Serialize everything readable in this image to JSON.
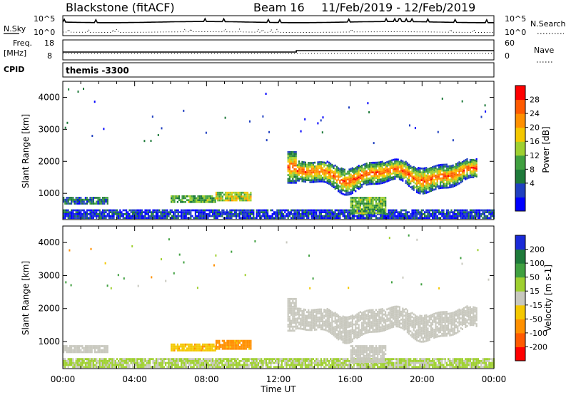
{
  "header": {
    "station": "Blackstone (fitACF)",
    "beam": "Beam 16",
    "date_range": "11/Feb/2019 - 12/Feb/2019"
  },
  "cpid": {
    "label": "CPID",
    "value": "themis -3300"
  },
  "summary": {
    "nsky_label": "N.Sky",
    "nsky_ticks": [
      "10^5",
      "10^0"
    ],
    "nsearch_label": "N.Search",
    "nsearch_ticks": [
      "10^5",
      "10^0"
    ],
    "freq_label_1": "Freq.",
    "freq_label_2": "[MHz]",
    "freq_ticks": [
      "18",
      "8"
    ],
    "nave_label": "Nave",
    "nave_ticks": [
      "60",
      "0"
    ]
  },
  "chart_data": [
    {
      "type": "heatmap",
      "name": "power",
      "xlabel": "Time UT",
      "ylabel": "Slant Range [km]",
      "xlim": [
        "00:00",
        "24:00"
      ],
      "ylim": [
        180,
        4500
      ],
      "x_ticks": [
        "00:00",
        "04:00",
        "08:00",
        "12:00",
        "16:00",
        "20:00",
        "00:00"
      ],
      "y_ticks": [
        1000,
        2000,
        3000,
        4000
      ],
      "colorbar": {
        "label": "Power [dB]",
        "ticks": [
          "28",
          "24",
          "20",
          "16",
          "12",
          "8",
          "4"
        ],
        "colors": [
          "#0000ff",
          "#2040c0",
          "#1e7a3a",
          "#40a040",
          "#9fd030",
          "#f4c800",
          "#ff9000",
          "#ff5a00",
          "#ff0000"
        ]
      },
      "regions": [
        {
          "label": "low-range band",
          "t_start_h": 0.0,
          "t_end_h": 24.0,
          "range_km": [
            200,
            450
          ],
          "value_db": 6
        },
        {
          "label": "ionospheric scatter (early)",
          "t_start_h": 0.0,
          "t_end_h": 2.5,
          "range_km": [
            650,
            850
          ],
          "value_db": 8
        },
        {
          "label": "ionospheric scatter (morning)",
          "t_start_h": 6.0,
          "t_end_h": 8.5,
          "range_km": [
            700,
            900
          ],
          "value_db": 14
        },
        {
          "label": "ionospheric scatter (pre-noon)",
          "t_start_h": 8.5,
          "t_end_h": 10.5,
          "range_km": [
            750,
            1050
          ],
          "value_db": 18
        },
        {
          "label": "afternoon wave band",
          "t_start_h": 12.5,
          "t_end_h": 23.0,
          "range_km": [
            1100,
            2200
          ],
          "value_db": 24
        },
        {
          "label": "lower echo",
          "t_start_h": 16.0,
          "t_end_h": 18.0,
          "range_km": [
            350,
            850
          ],
          "value_db": 14
        }
      ]
    },
    {
      "type": "heatmap",
      "name": "velocity",
      "xlabel": "Time UT",
      "ylabel": "Slant Range [km]",
      "xlim": [
        "00:00",
        "24:00"
      ],
      "ylim": [
        180,
        4500
      ],
      "x_ticks": [
        "00:00",
        "04:00",
        "08:00",
        "12:00",
        "16:00",
        "20:00",
        "00:00"
      ],
      "y_ticks": [
        1000,
        2000,
        3000,
        4000
      ],
      "colorbar": {
        "label": "Velocity [m s-1]",
        "ticks": [
          "200",
          "100",
          "50",
          "15",
          "-15",
          "-50",
          "-100",
          "-200"
        ],
        "colors": [
          "#1a2ad8",
          "#1e7a3a",
          "#40a040",
          "#9fd030",
          "#c8c8be",
          "#f4c800",
          "#ff9000",
          "#ff5a00",
          "#ff0000"
        ]
      },
      "regions": [
        {
          "label": "low-range band",
          "t_start_h": 0.0,
          "t_end_h": 24.0,
          "range_km": [
            200,
            450
          ],
          "value_ms": 20
        },
        {
          "label": "early band",
          "t_start_h": 0.0,
          "t_end_h": 2.5,
          "range_km": [
            650,
            850
          ],
          "value_ms": 0
        },
        {
          "label": "morning band",
          "t_start_h": 6.0,
          "t_end_h": 8.5,
          "range_km": [
            700,
            900
          ],
          "value_ms": -40
        },
        {
          "label": "pre-noon band",
          "t_start_h": 8.5,
          "t_end_h": 10.5,
          "range_km": [
            750,
            1050
          ],
          "value_ms": -60
        },
        {
          "label": "afternoon wave band",
          "t_start_h": 12.5,
          "t_end_h": 23.0,
          "range_km": [
            1100,
            2200
          ],
          "value_ms": 0
        },
        {
          "label": "lower echo",
          "t_start_h": 16.0,
          "t_end_h": 18.0,
          "range_km": [
            350,
            850
          ],
          "value_ms": 0
        }
      ]
    }
  ]
}
